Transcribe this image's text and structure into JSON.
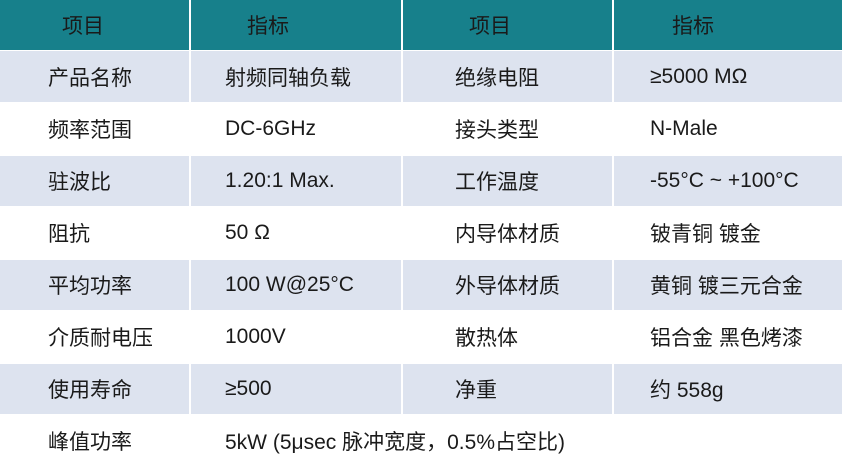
{
  "table": {
    "header": [
      "项目",
      "指标",
      "项目",
      "指标"
    ],
    "rows": [
      [
        "产品名称",
        "射频同轴负载",
        "绝缘电阻",
        "≥5000 MΩ"
      ],
      [
        "频率范围",
        "DC-6GHz",
        "接头类型",
        "N-Male"
      ],
      [
        "驻波比",
        "1.20:1 Max.",
        "工作温度",
        "-55°C ~ +100°C"
      ],
      [
        "阻抗",
        "50 Ω",
        "内导体材质",
        "铍青铜 镀金"
      ],
      [
        "平均功率",
        "100 W@25°C",
        "外导体材质",
        "黄铜 镀三元合金"
      ],
      [
        "介质耐电压",
        "1000V",
        "散热体",
        "铝合金 黑色烤漆"
      ],
      [
        "使用寿命",
        "≥500",
        "净重",
        "约 558g"
      ],
      [
        "峰值功率",
        "5kW (5μsec 脉冲宽度，0.5%占空比)"
      ]
    ]
  }
}
